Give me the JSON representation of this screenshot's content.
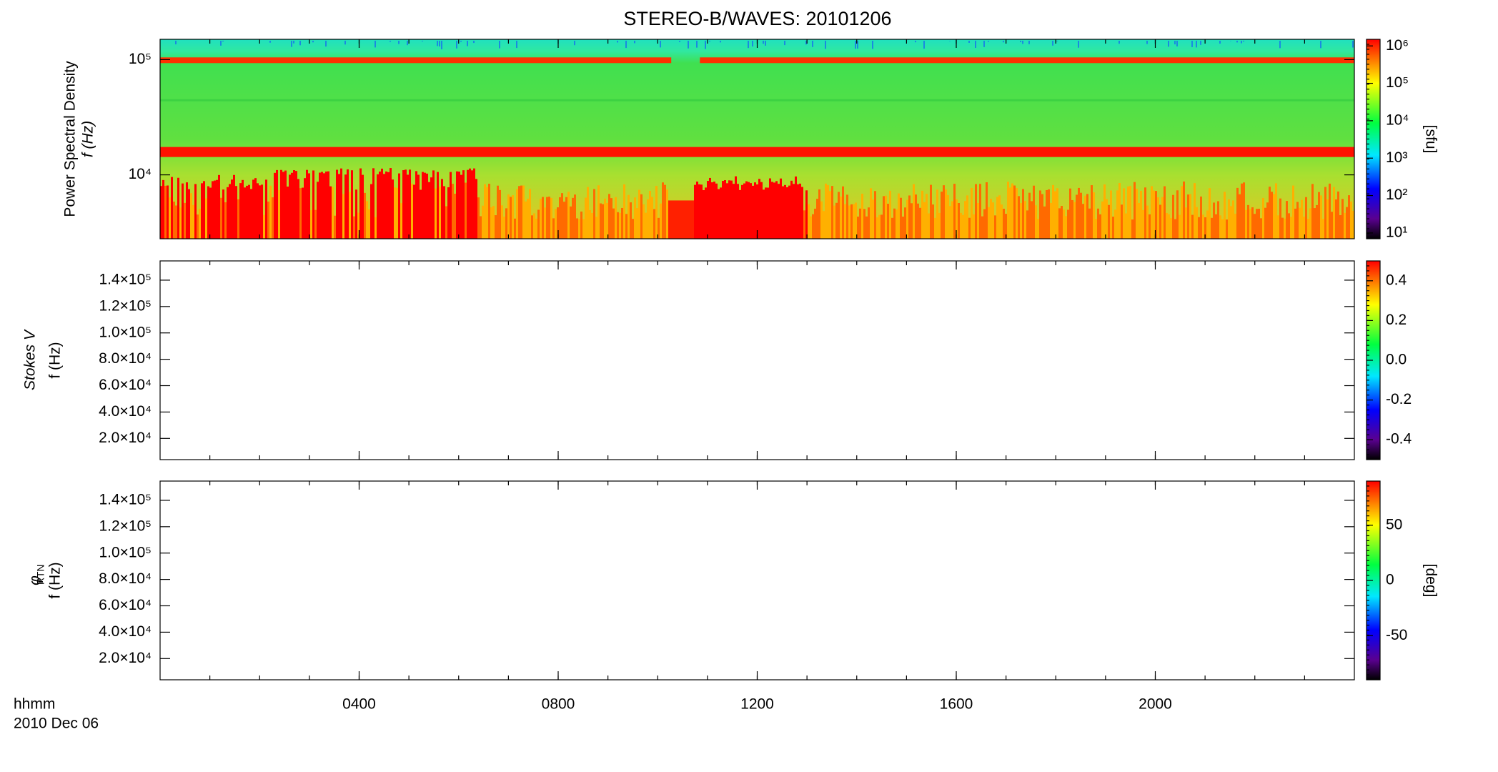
{
  "title": "STEREO-B/WAVES: 20101206",
  "x_label": "hhmm",
  "x_sublabel": "2010 Dec 06",
  "xlim": [
    0,
    24
  ],
  "xticks": [
    {
      "value": 4,
      "label": "0400"
    },
    {
      "value": 8,
      "label": "0800"
    },
    {
      "value": 12,
      "label": "1200"
    },
    {
      "value": 16,
      "label": "1600"
    },
    {
      "value": 20,
      "label": "2000"
    }
  ],
  "chart_data": [
    {
      "type": "spectrogram",
      "ylabel": "Power Spectral Density",
      "ylabel2": "f (Hz)",
      "log_y": true,
      "ylim": [
        2790,
        150000
      ],
      "yticks": [
        {
          "value": 10000,
          "label": "10⁴"
        },
        {
          "value": 100000,
          "label": "10⁵"
        }
      ],
      "colorbar": {
        "label": "[sfu]",
        "log": true,
        "lim": [
          7,
          1500000
        ],
        "ticks": [
          {
            "value": 10,
            "label": "10¹"
          },
          {
            "value": 100,
            "label": "10²"
          },
          {
            "value": 1000,
            "label": "10³"
          },
          {
            "value": 10000,
            "label": "10⁴"
          },
          {
            "value": 100000,
            "label": "10⁵"
          },
          {
            "value": 1000000,
            "label": "10⁶"
          }
        ]
      }
    },
    {
      "type": "spectrogram",
      "ylabel": "Stokes V",
      "ylabel2": "f (Hz)",
      "log_y": false,
      "ylim": [
        3900,
        154600
      ],
      "yticks": [
        {
          "value": 20000,
          "label": "2.0×10⁴"
        },
        {
          "value": 40000,
          "label": "4.0×10⁴"
        },
        {
          "value": 60000,
          "label": "6.0×10⁴"
        },
        {
          "value": 80000,
          "label": "8.0×10⁴"
        },
        {
          "value": 100000,
          "label": "1.0×10⁵"
        },
        {
          "value": 120000,
          "label": "1.2×10⁵"
        },
        {
          "value": 140000,
          "label": "1.4×10⁵"
        }
      ],
      "colorbar": {
        "log": false,
        "lim": [
          -0.5,
          0.5
        ],
        "ticks": [
          -0.4,
          -0.2,
          {
            "value": 0,
            "label": "0.0"
          },
          0.2,
          0.4
        ]
      }
    },
    {
      "type": "spectrogram",
      "ylabel": "φ",
      "ylabel_sub": "RTN",
      "ylabel2": "f (Hz)",
      "log_y": false,
      "ylim": [
        3900,
        154600
      ],
      "yticks": [
        {
          "value": 20000,
          "label": "2.0×10⁴"
        },
        {
          "value": 40000,
          "label": "4.0×10⁴"
        },
        {
          "value": 60000,
          "label": "6.0×10⁴"
        },
        {
          "value": 80000,
          "label": "8.0×10⁴"
        },
        {
          "value": 100000,
          "label": "1.0×10⁵"
        },
        {
          "value": 120000,
          "label": "1.2×10⁵"
        },
        {
          "value": 140000,
          "label": "1.4×10⁵"
        }
      ],
      "colorbar": {
        "label": "[deg]",
        "log": false,
        "lim": [
          -90,
          90
        ],
        "ticks": [
          -50,
          0,
          50
        ]
      }
    }
  ]
}
